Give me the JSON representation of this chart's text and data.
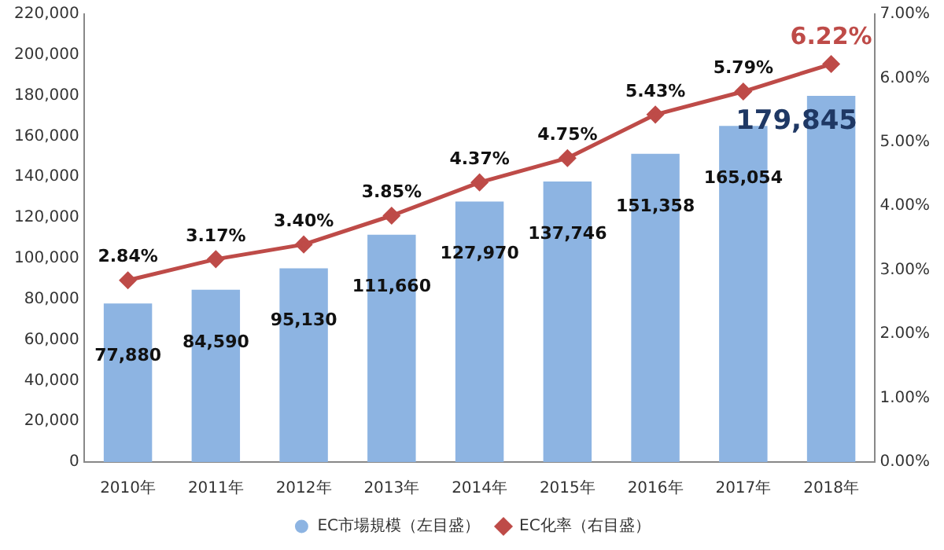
{
  "chart_data": {
    "type": "bar",
    "categories": [
      "2010年",
      "2011年",
      "2012年",
      "2013年",
      "2014年",
      "2015年",
      "2016年",
      "2017年",
      "2018年"
    ],
    "series": [
      {
        "name": "EC市場規模（左目盛）",
        "color": "#8db4e2",
        "values": [
          77880,
          84590,
          95130,
          111660,
          127970,
          137746,
          151358,
          165054,
          179845
        ],
        "value_labels": [
          "77,880",
          "84,590",
          "95,130",
          "111,660",
          "127,970",
          "137,746",
          "151,358",
          "165,054",
          "179,845"
        ]
      },
      {
        "name": "EC化率（右目盛）",
        "type": "line",
        "axis": "y2",
        "color": "#be4b48",
        "marker": "diamond",
        "values": [
          2.84,
          3.17,
          3.4,
          3.85,
          4.37,
          4.75,
          5.43,
          5.79,
          6.22
        ],
        "value_labels": [
          "2.84%",
          "3.17%",
          "3.40%",
          "3.85%",
          "4.37%",
          "4.75%",
          "5.43%",
          "5.79%",
          "6.22%"
        ]
      }
    ],
    "ylim": [
      0,
      220000
    ],
    "yticks": [
      {
        "value": 0,
        "label": "0"
      },
      {
        "value": 20000,
        "label": "20,000"
      },
      {
        "value": 40000,
        "label": "40,000"
      },
      {
        "value": 60000,
        "label": "60,000"
      },
      {
        "value": 80000,
        "label": "80,000"
      },
      {
        "value": 100000,
        "label": "100,000"
      },
      {
        "value": 120000,
        "label": "120,000"
      },
      {
        "value": 140000,
        "label": "140,000"
      },
      {
        "value": 160000,
        "label": "160,000"
      },
      {
        "value": 180000,
        "label": "180,000"
      },
      {
        "value": 200000,
        "label": "200,000"
      },
      {
        "value": 220000,
        "label": "220,000"
      }
    ],
    "y2lim": [
      0,
      7
    ],
    "y2ticks": [
      {
        "value": 0,
        "label": "0.00%"
      },
      {
        "value": 1,
        "label": "1.00%"
      },
      {
        "value": 2,
        "label": "2.00%"
      },
      {
        "value": 3,
        "label": "3.00%"
      },
      {
        "value": 4,
        "label": "4.00%"
      },
      {
        "value": 5,
        "label": "5.00%"
      },
      {
        "value": 6,
        "label": "6.00%"
      },
      {
        "value": 7,
        "label": "7.00%"
      }
    ],
    "grid": false,
    "legend": "bottom"
  }
}
